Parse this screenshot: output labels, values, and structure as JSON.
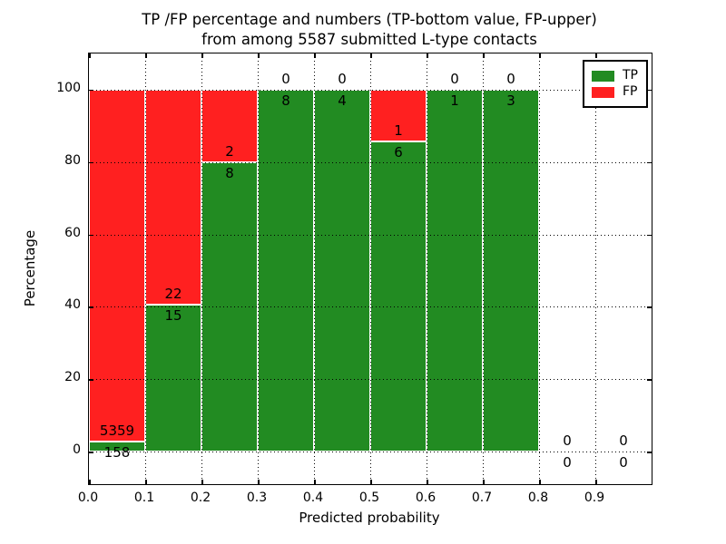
{
  "title": {
    "line1": "TP /FP percentage and numbers (TP-bottom value, FP-upper)",
    "line2": "from among 5587 submitted L-type contacts"
  },
  "axes": {
    "xlabel": "Predicted probability",
    "ylabel": "Percentage"
  },
  "legend": {
    "position": "upper right",
    "items": [
      {
        "label": "TP",
        "color": "#228b22"
      },
      {
        "label": "FP",
        "color": "#ff2020"
      }
    ]
  },
  "chart_data": {
    "type": "bar",
    "stacked": true,
    "normalized_to_percent": true,
    "title": "TP /FP percentage and numbers (TP-bottom value, FP-upper) from among 5587 submitted L-type contacts",
    "xlabel": "Predicted probability",
    "ylabel": "Percentage",
    "total_contacts": 5587,
    "xlim": [
      0.0,
      1.0
    ],
    "ylim": [
      -9,
      110
    ],
    "bin_width": 0.1,
    "grid": true,
    "xtick_labels": [
      "0.0",
      "0.1",
      "0.2",
      "0.3",
      "0.4",
      "0.5",
      "0.6",
      "0.7",
      "0.8",
      "0.9"
    ],
    "xtick_values": [
      0.0,
      0.1,
      0.2,
      0.3,
      0.4,
      0.5,
      0.6,
      0.7,
      0.8,
      0.9
    ],
    "ytick_values": [
      0,
      20,
      40,
      60,
      80,
      100
    ],
    "categories": [
      "0.0-0.1",
      "0.1-0.2",
      "0.2-0.3",
      "0.3-0.4",
      "0.4-0.5",
      "0.5-0.6",
      "0.6-0.7",
      "0.7-0.8",
      "0.8-0.9",
      "0.9-1.0"
    ],
    "series": [
      {
        "name": "TP",
        "color": "#228b22",
        "counts": [
          158,
          15,
          8,
          8,
          4,
          6,
          1,
          3,
          0,
          0
        ]
      },
      {
        "name": "FP",
        "color": "#ff2020",
        "counts": [
          5359,
          22,
          2,
          0,
          0,
          1,
          0,
          0,
          0,
          0
        ]
      }
    ],
    "tp_percent_heights": [
      2.9,
      40.5,
      80.0,
      100.0,
      100.0,
      85.7,
      100.0,
      100.0,
      0.0,
      0.0
    ],
    "fp_percent_heights": [
      97.1,
      59.5,
      20.0,
      0.0,
      0.0,
      14.3,
      0.0,
      0.0,
      0.0,
      0.0
    ],
    "bar_edge_color": "#ffffff",
    "grid_color": "#000000",
    "grid_style": "dotted"
  }
}
